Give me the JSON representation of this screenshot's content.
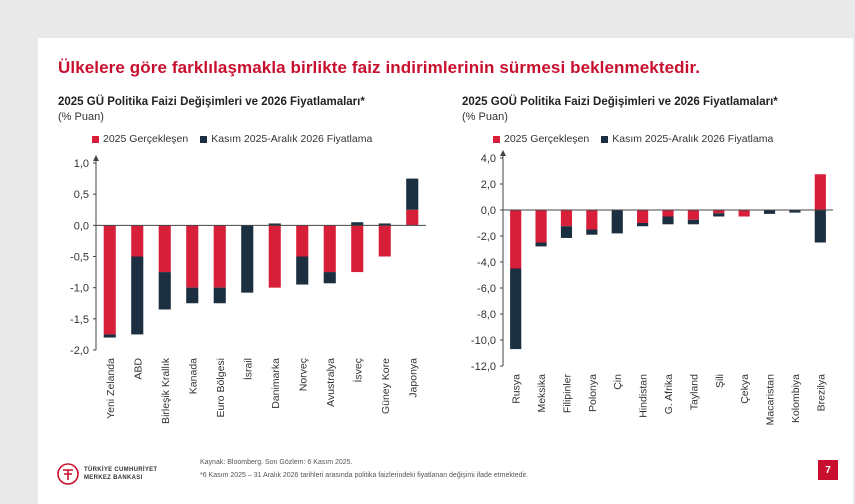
{
  "headline": "Ülkelere göre farklılaşmakla birlikte faiz indirimlerinin sürmesi beklenmektedir.",
  "colors": {
    "realized": "#d71f3a",
    "pricing": "#1c2f40",
    "brand": "#c8102e"
  },
  "chart_data": [
    {
      "type": "bar",
      "stacked": true,
      "title": "2025 GÜ Politika Faizi Değişimleri ve 2026 Fiyatlamaları*",
      "unit": "(% Puan)",
      "categories": [
        "Yeni Zelanda",
        "ABD",
        "Birleşik Krallık",
        "Kanada",
        "Euro Bölgesi",
        "İsrail",
        "Danimarka",
        "Norveç",
        "Avustralya",
        "İsveç",
        "Güney Kore",
        "Japonya"
      ],
      "series": [
        {
          "name": "2025 Gerçekleşen",
          "values": [
            -1.75,
            -0.5,
            -0.75,
            -1.0,
            -1.0,
            0.0,
            -1.0,
            -0.5,
            -0.75,
            -0.75,
            -0.5,
            0.25
          ]
        },
        {
          "name": "Kasım 2025-Aralık 2026 Fiyatlama",
          "values": [
            -0.05,
            -1.25,
            -0.6,
            -0.25,
            -0.25,
            -1.08,
            0.03,
            -0.45,
            -0.18,
            0.05,
            0.03,
            0.5
          ]
        }
      ],
      "ylim": [
        -2.0,
        1.0
      ],
      "yticks": [
        "1,0",
        "0,5",
        "0,0",
        "-0,5",
        "-1,0",
        "-1,5",
        "-2,0"
      ],
      "ytick_values": [
        1.0,
        0.5,
        0.0,
        -0.5,
        -1.0,
        -1.5,
        -2.0
      ]
    },
    {
      "type": "bar",
      "stacked": true,
      "title": "2025 GOÜ Politika Faizi Değişimleri ve 2026 Fiyatlamaları*",
      "unit": "(% Puan)",
      "categories": [
        "Rusya",
        "Meksika",
        "Filipinler",
        "Polonya",
        "Çin",
        "Hindistan",
        "G. Afrika",
        "Tayland",
        "Şili",
        "Çekya",
        "Macaristan",
        "Kolombiya",
        "Brezilya"
      ],
      "series": [
        {
          "name": "2025 Gerçekleşen",
          "values": [
            -4.5,
            -2.5,
            -1.25,
            -1.5,
            0.0,
            -1.0,
            -0.5,
            -0.75,
            -0.25,
            -0.5,
            0.0,
            0.0,
            2.75
          ]
        },
        {
          "name": "Kasım 2025-Aralık 2026 Fiyatlama",
          "values": [
            -6.2,
            -0.3,
            -0.9,
            -0.4,
            -1.8,
            -0.25,
            -0.6,
            -0.35,
            -0.25,
            0.0,
            -0.3,
            -0.2,
            -2.5
          ]
        }
      ],
      "ylim": [
        -12.0,
        4.0
      ],
      "yticks": [
        "4,0",
        "2,0",
        "0,0",
        "-2,0",
        "-4,0",
        "-6,0",
        "-8,0",
        "-10,0",
        "-12,0"
      ],
      "ytick_values": [
        4.0,
        2.0,
        0.0,
        -2.0,
        -4.0,
        -6.0,
        -8.0,
        -10.0,
        -12.0
      ]
    }
  ],
  "legend": {
    "realized": "2025 Gerçekleşen",
    "pricing": "Kasım 2025-Aralık 2026 Fiyatlama"
  },
  "source": "Kaynak: Bloomberg. Son Gözlem: 6 Kasım 2025.",
  "footnote": "*6 Kasım 2025 – 31 Aralık 2026 tarihleri arasında politika faizlerindeki fiyatlanan değişimi ifade etmektedir.",
  "logo": {
    "line1": "TÜRKİYE CUMHURİYET",
    "line2": "MERKEZ BANKASI"
  },
  "page_number": "7"
}
